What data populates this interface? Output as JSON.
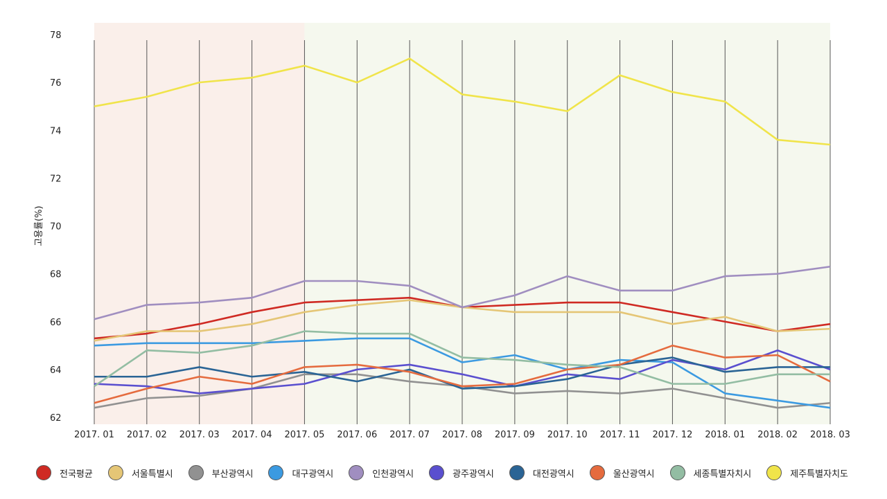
{
  "chart_data": {
    "type": "line",
    "title": "",
    "xlabel": "",
    "ylabel": "고용률(%)",
    "ylim": [
      62,
      78
    ],
    "yticks": [
      62,
      64,
      66,
      68,
      70,
      72,
      74,
      76,
      78
    ],
    "grid": "vertical",
    "legend_position": "bottom",
    "categories": [
      "2017. 01",
      "2017. 02",
      "2017. 03",
      "2017. 04",
      "2017. 05",
      "2017. 06",
      "2017. 07",
      "2017. 08",
      "2017. 09",
      "2017. 10",
      "2017. 11",
      "2017. 12",
      "2018. 01",
      "2018. 02",
      "2018. 03"
    ],
    "shaded_regions": [
      {
        "from": "2017. 01",
        "to": "2017. 05",
        "color": "#faefea"
      },
      {
        "from": "2017. 05",
        "to": "2018. 03",
        "color": "#f5f8ee"
      }
    ],
    "series": [
      {
        "name": "전국평균",
        "color": "#cf2a23",
        "values": [
          65.3,
          65.5,
          65.9,
          66.4,
          66.8,
          66.9,
          67.0,
          66.6,
          66.7,
          66.8,
          66.8,
          66.4,
          66.0,
          65.6,
          65.9
        ]
      },
      {
        "name": "서울특별시",
        "color": "#e5c676",
        "values": [
          65.2,
          65.6,
          65.6,
          65.9,
          66.4,
          66.7,
          66.9,
          66.6,
          66.4,
          66.4,
          66.4,
          65.9,
          66.2,
          65.6,
          65.7
        ]
      },
      {
        "name": "부산광역시",
        "color": "#919191",
        "values": [
          62.4,
          62.8,
          62.9,
          63.2,
          63.8,
          63.8,
          63.5,
          63.3,
          63.0,
          63.1,
          63.0,
          63.2,
          62.8,
          62.4,
          62.6
        ]
      },
      {
        "name": "대구광역시",
        "color": "#3b9ae1",
        "values": [
          65.0,
          65.1,
          65.1,
          65.1,
          65.2,
          65.3,
          65.3,
          64.3,
          64.6,
          64.0,
          64.4,
          64.3,
          63.0,
          62.7,
          62.4
        ]
      },
      {
        "name": "인천광역시",
        "color": "#a08ec0",
        "values": [
          66.1,
          66.7,
          66.8,
          67.0,
          67.7,
          67.7,
          67.5,
          66.6,
          67.1,
          67.9,
          67.3,
          67.3,
          67.9,
          68.0,
          68.3
        ]
      },
      {
        "name": "광주광역시",
        "color": "#5a4fcf",
        "values": [
          63.4,
          63.3,
          63.0,
          63.2,
          63.4,
          64.0,
          64.2,
          63.8,
          63.3,
          63.8,
          63.6,
          64.4,
          64.0,
          64.8,
          64.0
        ]
      },
      {
        "name": "대전광역시",
        "color": "#2a6495",
        "values": [
          63.7,
          63.7,
          64.1,
          63.7,
          63.9,
          63.5,
          64.0,
          63.2,
          63.3,
          63.6,
          64.2,
          64.5,
          63.9,
          64.1,
          64.1
        ]
      },
      {
        "name": "울산광역시",
        "color": "#e56b3e",
        "values": [
          62.6,
          63.2,
          63.7,
          63.4,
          64.1,
          64.2,
          63.9,
          63.3,
          63.4,
          64.0,
          64.2,
          65.0,
          64.5,
          64.6,
          63.5
        ]
      },
      {
        "name": "세종특별자치시",
        "color": "#93bda3",
        "values": [
          63.3,
          64.8,
          64.7,
          65.0,
          65.6,
          65.5,
          65.5,
          64.5,
          64.4,
          64.2,
          64.1,
          63.4,
          63.4,
          63.8,
          63.8
        ]
      },
      {
        "name": "제주특별자치도",
        "color": "#f0e44a",
        "values": [
          75.0,
          75.4,
          76.0,
          76.2,
          76.7,
          76.0,
          77.0,
          75.5,
          75.2,
          74.8,
          76.3,
          75.6,
          75.2,
          73.6,
          73.4
        ]
      }
    ]
  }
}
